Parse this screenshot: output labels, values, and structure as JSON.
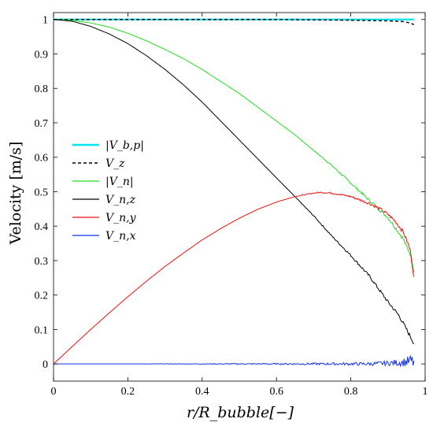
{
  "chart_data": {
    "type": "line",
    "title": "",
    "xlabel": "r/R_bubble[−]",
    "ylabel": "Velocity [m/s]",
    "xlim": [
      0,
      1
    ],
    "ylim": [
      -0.05,
      1.02
    ],
    "xticks": [
      "0",
      "0.2",
      "0.4",
      "0.6",
      "0.8",
      "1"
    ],
    "yticks": [
      "0",
      "0.1",
      "0.2",
      "0.3",
      "0.4",
      "0.5",
      "0.6",
      "0.7",
      "0.8",
      "0.9",
      "1"
    ],
    "grid": false,
    "legend_position": "middle-left",
    "series": [
      {
        "name": "|V_b,p|",
        "color": "#00e5f0",
        "style": "solid",
        "x": [
          0,
          0.2,
          0.4,
          0.6,
          0.8,
          0.97
        ],
        "y": [
          1.0,
          1.0,
          1.0,
          1.0,
          1.0,
          1.0
        ]
      },
      {
        "name": "V_z",
        "color": "#000000",
        "style": "dashed",
        "x": [
          0,
          0.2,
          0.4,
          0.6,
          0.8,
          0.9,
          0.94,
          0.96,
          0.97
        ],
        "y": [
          1.0,
          1.0,
          1.0,
          1.0,
          0.998,
          0.996,
          0.994,
          0.99,
          0.985
        ]
      },
      {
        "name": "|V_n|",
        "color": "#22dd22",
        "style": "solid",
        "x": [
          0,
          0.05,
          0.1,
          0.15,
          0.2,
          0.25,
          0.3,
          0.35,
          0.4,
          0.45,
          0.5,
          0.55,
          0.6,
          0.65,
          0.7,
          0.75,
          0.8,
          0.85,
          0.88,
          0.9,
          0.92,
          0.94,
          0.95,
          0.96,
          0.965,
          0.97
        ],
        "y": [
          1.0,
          0.997,
          0.99,
          0.978,
          0.96,
          0.938,
          0.913,
          0.886,
          0.855,
          0.82,
          0.785,
          0.745,
          0.705,
          0.665,
          0.62,
          0.575,
          0.525,
          0.475,
          0.445,
          0.425,
          0.395,
          0.365,
          0.34,
          0.32,
          0.3,
          0.27
        ]
      },
      {
        "name": "V_n,z",
        "color": "#000000",
        "style": "solid",
        "x": [
          0,
          0.05,
          0.1,
          0.15,
          0.2,
          0.25,
          0.3,
          0.35,
          0.4,
          0.45,
          0.5,
          0.55,
          0.6,
          0.65,
          0.7,
          0.75,
          0.8,
          0.85,
          0.9,
          0.93,
          0.95,
          0.96,
          0.97
        ],
        "y": [
          1.0,
          0.995,
          0.98,
          0.958,
          0.93,
          0.895,
          0.855,
          0.81,
          0.76,
          0.705,
          0.65,
          0.595,
          0.54,
          0.485,
          0.43,
          0.37,
          0.315,
          0.255,
          0.18,
          0.14,
          0.1,
          0.08,
          0.06
        ]
      },
      {
        "name": "V_n,y",
        "color": "#ee1111",
        "style": "solid",
        "x": [
          0,
          0.05,
          0.1,
          0.15,
          0.2,
          0.25,
          0.3,
          0.35,
          0.4,
          0.45,
          0.5,
          0.55,
          0.6,
          0.65,
          0.7,
          0.72,
          0.75,
          0.8,
          0.85,
          0.88,
          0.9,
          0.92,
          0.94,
          0.95,
          0.96,
          0.965,
          0.97
        ],
        "y": [
          0,
          0.05,
          0.1,
          0.148,
          0.195,
          0.24,
          0.283,
          0.322,
          0.36,
          0.393,
          0.423,
          0.449,
          0.47,
          0.486,
          0.496,
          0.498,
          0.496,
          0.486,
          0.466,
          0.449,
          0.434,
          0.414,
          0.385,
          0.36,
          0.33,
          0.29,
          0.25
        ]
      },
      {
        "name": "V_n,x",
        "color": "#1133ee",
        "style": "solid",
        "x": [
          0,
          0.1,
          0.2,
          0.3,
          0.4,
          0.5,
          0.6,
          0.7,
          0.8,
          0.85,
          0.9,
          0.93,
          0.95,
          0.96,
          0.97
        ],
        "y": [
          0,
          0,
          0,
          0,
          0,
          0,
          0,
          0,
          0,
          0,
          0.002,
          0.004,
          0.006,
          0.008,
          0.005
        ],
        "noise": [
          0,
          0,
          0,
          0.0005,
          0.001,
          0.0015,
          0.002,
          0.003,
          0.004,
          0.005,
          0.007,
          0.01,
          0.014,
          0.018,
          0.022
        ]
      }
    ]
  }
}
